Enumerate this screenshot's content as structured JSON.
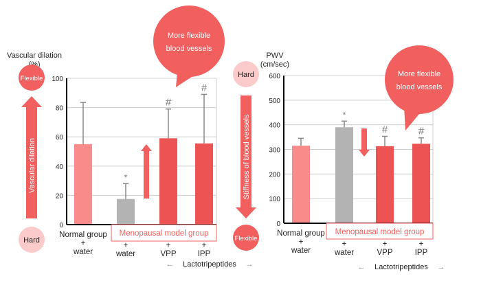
{
  "colors": {
    "normal": "#f98b8b",
    "water": "#b3b3b3",
    "treatment": "#ec5454",
    "accent": "#f25f5f",
    "pale": "#fbcaca",
    "grid": "#cccccc",
    "error": "#888888"
  },
  "chart_data": [
    {
      "type": "bar",
      "ylabel": "Vascular dilation",
      "yunit": "(%)",
      "ylim": [
        0,
        100
      ],
      "yticks": [
        0,
        20,
        40,
        60,
        80,
        100
      ],
      "grid": true,
      "categories": [
        "Normal group + water",
        "+ water",
        "+ VPP",
        "+ IPP"
      ],
      "category_lines": [
        [
          "Normal group",
          "+",
          "water"
        ],
        [
          "",
          "+",
          "water"
        ],
        [
          "",
          "+",
          "VPP"
        ],
        [
          "",
          "+",
          "IPP"
        ]
      ],
      "values": [
        55,
        17.5,
        59,
        55.5
      ],
      "error_upper": [
        83.5,
        28,
        79,
        89
      ],
      "markers": [
        "",
        "*",
        "#",
        "#"
      ],
      "group_label": "Menopausal model group",
      "sub_label": "Lactotripeptides",
      "axis_arrow_label": "Vascular dilation",
      "top_label": "Flexible",
      "bottom_label": "Hard",
      "callout": [
        "More flexible",
        "blood vessels"
      ]
    },
    {
      "type": "bar",
      "ylabel": "PWV",
      "yunit": "(cm/sec)",
      "ylim": [
        0,
        600
      ],
      "yticks": [
        0,
        100,
        200,
        300,
        400,
        500,
        600
      ],
      "grid": true,
      "categories": [
        "Normal group + water",
        "+ water",
        "+ VPP",
        "+ IPP"
      ],
      "category_lines": [
        [
          "Normal group",
          "+",
          "water"
        ],
        [
          "",
          "+",
          "water"
        ],
        [
          "",
          "+",
          "VPP"
        ],
        [
          "",
          "+",
          "IPP"
        ]
      ],
      "values": [
        315,
        390,
        313,
        323
      ],
      "error_upper": [
        345,
        415,
        353,
        347
      ],
      "markers": [
        "",
        "*",
        "#",
        "#"
      ],
      "group_label": "Menopausal model group",
      "sub_label": "Lactotripeptides",
      "axis_arrow_label": "Stiffness of blood vessels",
      "top_label": "Hard",
      "bottom_label": "Flexible",
      "callout": [
        "More flexible",
        "blood vessels"
      ]
    }
  ]
}
